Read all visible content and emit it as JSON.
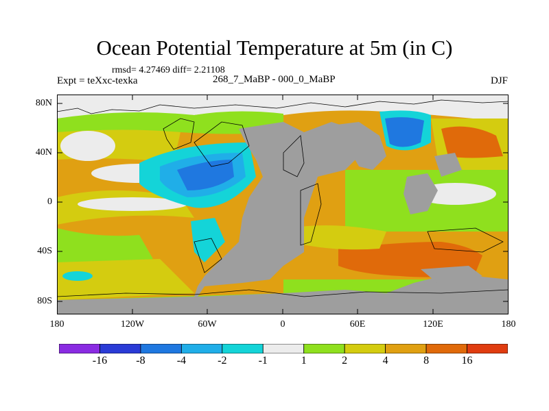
{
  "title": "Ocean Potential Temperature at 5m (in C)",
  "stats": "rmsd= 4.27469  diff= 2.21108",
  "experiment": "Expt = teXxc-texka",
  "subtitle": "268_7_MaBP - 000_0_MaBP",
  "season": "DJF",
  "lat_ticks": [
    "80N",
    "40N",
    "0",
    "40S",
    "80S"
  ],
  "lon_ticks": [
    "180",
    "120W",
    "60W",
    "0",
    "60E",
    "120E",
    "180"
  ],
  "colorbar": {
    "colors": [
      "#8a2be2",
      "#2a3bd6",
      "#1f78e0",
      "#20aee8",
      "#14d4d8",
      "#ececec",
      "#8fe01e",
      "#d4cc10",
      "#e0a012",
      "#e06a0a",
      "#e03c10"
    ],
    "labels": [
      "-16",
      "-8",
      "-4",
      "-2",
      "-1",
      "1",
      "2",
      "4",
      "8",
      "16"
    ]
  },
  "map_colors": {
    "land": "#9e9e9e",
    "white": "#ececec",
    "green": "#8fe01e",
    "yellow": "#d4cc10",
    "orange": "#e0a012",
    "dark_orange": "#e06a0a",
    "cyan": "#14d4d8",
    "light_blue": "#20aee8",
    "blue": "#1f78e0"
  }
}
